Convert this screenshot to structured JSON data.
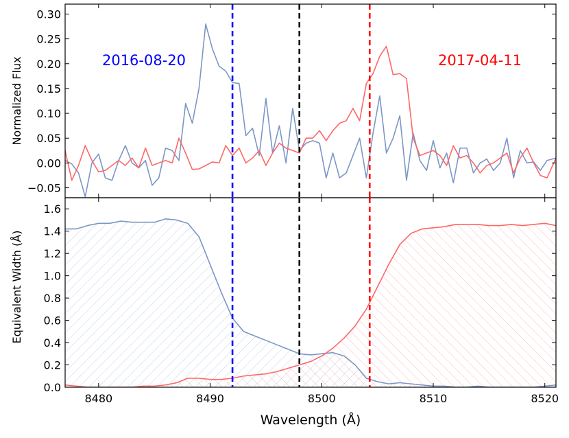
{
  "chart_data": [
    {
      "type": "line",
      "panel": "top",
      "title": "",
      "xlabel": "",
      "ylabel": "Normalized Flux",
      "xlim": [
        8477,
        8521
      ],
      "ylim": [
        -0.07,
        0.32
      ],
      "yticks": [
        -0.05,
        0.0,
        0.05,
        0.1,
        0.15,
        0.2,
        0.25,
        0.3
      ],
      "ytick_labels": [
        "−0.05",
        "0.00",
        "0.05",
        "0.10",
        "0.15",
        "0.20",
        "0.25",
        "0.30"
      ],
      "grid": false,
      "annotations": [
        {
          "text": "2016-08-20",
          "color": "#0000ff"
        },
        {
          "text": "2017-04-11",
          "color": "#ff0000"
        }
      ],
      "vlines": [
        {
          "x": 8492,
          "color": "#0000ff",
          "style": "dashed"
        },
        {
          "x": 8498,
          "color": "#000000",
          "style": "dashed"
        },
        {
          "x": 8504.3,
          "color": "#ff0000",
          "style": "dashed"
        }
      ],
      "series": [
        {
          "color": "#7b96c6",
          "x": [
            8477,
            8477.6,
            8478.2,
            8478.8,
            8479.4,
            8480,
            8480.6,
            8481.2,
            8481.8,
            8482.4,
            8483,
            8483.6,
            8484.2,
            8484.8,
            8485.4,
            8486,
            8486.6,
            8487.2,
            8487.8,
            8488.4,
            8489,
            8489.6,
            8490.2,
            8490.8,
            8491.4,
            8492,
            8492.6,
            8493.2,
            8493.8,
            8494.4,
            8495,
            8495.6,
            8496.2,
            8496.8,
            8497.4,
            8498,
            8498.6,
            8499.2,
            8499.8,
            8500.4,
            8501,
            8501.6,
            8502.2,
            8502.8,
            8503.4,
            8504,
            8504.6,
            8505.2,
            8505.8,
            8506.4,
            8507,
            8507.6,
            8508.2,
            8508.8,
            8509.4,
            8510,
            8510.6,
            8511.2,
            8511.8,
            8512.4,
            8513,
            8513.6,
            8514.2,
            8514.8,
            8515.4,
            8516,
            8516.6,
            8517.2,
            8517.8,
            8518.4,
            8519,
            8519.6,
            8520.2,
            8521
          ],
          "y": [
            0.005,
            -0.002,
            -0.02,
            -0.068,
            0.0,
            0.018,
            -0.03,
            -0.035,
            0.005,
            0.035,
            0.0,
            -0.01,
            0.005,
            -0.045,
            -0.03,
            0.03,
            0.025,
            0.005,
            0.12,
            0.08,
            0.15,
            0.28,
            0.23,
            0.195,
            0.185,
            0.162,
            0.16,
            0.055,
            0.07,
            0.015,
            0.13,
            0.02,
            0.075,
            0.0,
            0.11,
            0.025,
            0.04,
            0.045,
            0.04,
            -0.03,
            0.02,
            -0.03,
            -0.02,
            0.015,
            0.05,
            -0.03,
            0.06,
            0.135,
            0.02,
            0.05,
            0.095,
            -0.035,
            0.06,
            0.005,
            -0.015,
            0.045,
            -0.01,
            0.02,
            -0.04,
            0.03,
            0.03,
            -0.02,
            0.0,
            0.008,
            -0.015,
            0.0,
            0.05,
            -0.03,
            0.025,
            0.0,
            0.002,
            -0.015,
            0.005,
            0.01
          ]
        },
        {
          "color": "#ff6666",
          "x": [
            8477,
            8477.6,
            8478.2,
            8478.8,
            8479.4,
            8480,
            8480.6,
            8481.2,
            8481.8,
            8482.4,
            8483,
            8483.6,
            8484.2,
            8484.8,
            8485.4,
            8486,
            8486.6,
            8487.2,
            8487.8,
            8488.4,
            8489,
            8489.6,
            8490.2,
            8490.8,
            8491.4,
            8492,
            8492.6,
            8493.2,
            8493.8,
            8494.4,
            8495,
            8495.6,
            8496.2,
            8496.8,
            8497.4,
            8498,
            8498.6,
            8499.2,
            8499.8,
            8500.4,
            8501,
            8501.6,
            8502.2,
            8502.8,
            8503.4,
            8504,
            8504.6,
            8505.2,
            8505.8,
            8506.4,
            8507,
            8507.6,
            8508.2,
            8508.8,
            8509.4,
            8510,
            8510.6,
            8511.2,
            8511.8,
            8512.4,
            8513,
            8513.6,
            8514.2,
            8514.8,
            8515.4,
            8516,
            8516.6,
            8517.2,
            8517.8,
            8518.4,
            8519,
            8519.6,
            8520.2,
            8521
          ],
          "y": [
            0.025,
            -0.035,
            -0.005,
            0.035,
            0.005,
            -0.018,
            -0.015,
            -0.005,
            0.005,
            -0.005,
            0.01,
            -0.01,
            0.03,
            -0.005,
            0.0,
            0.005,
            0.0,
            0.05,
            0.02,
            -0.013,
            -0.012,
            -0.005,
            0.002,
            0.0,
            0.035,
            0.015,
            0.03,
            0.0,
            0.01,
            0.025,
            -0.005,
            0.02,
            0.04,
            0.03,
            0.025,
            0.02,
            0.05,
            0.05,
            0.065,
            0.045,
            0.065,
            0.08,
            0.085,
            0.11,
            0.085,
            0.16,
            0.18,
            0.215,
            0.235,
            0.178,
            0.18,
            0.17,
            0.05,
            0.015,
            0.02,
            0.025,
            0.015,
            -0.005,
            0.035,
            0.01,
            0.015,
            0.0,
            -0.02,
            -0.005,
            0.0,
            0.01,
            0.02,
            -0.02,
            0.01,
            0.03,
            0.0,
            -0.025,
            -0.03,
            0.01
          ]
        }
      ]
    },
    {
      "type": "area",
      "panel": "bottom",
      "title": "",
      "xlabel": "Wavelength (Å)",
      "ylabel": "Equivalent Width (Å)",
      "xlim": [
        8477,
        8521
      ],
      "ylim": [
        0.0,
        1.7
      ],
      "xticks": [
        8480,
        8490,
        8500,
        8510,
        8520
      ],
      "xtick_labels": [
        "8480",
        "8490",
        "8500",
        "8510",
        "8520"
      ],
      "yticks": [
        0.0,
        0.2,
        0.4,
        0.6,
        0.8,
        1.0,
        1.2,
        1.4,
        1.6
      ],
      "ytick_labels": [
        "0.0",
        "0.2",
        "0.4",
        "0.6",
        "0.8",
        "1.0",
        "1.2",
        "1.4",
        "1.6"
      ],
      "grid": false,
      "vlines": [
        {
          "x": 8492,
          "color": "#0000ff",
          "style": "dashed"
        },
        {
          "x": 8498,
          "color": "#000000",
          "style": "dashed"
        },
        {
          "x": 8504.3,
          "color": "#ff0000",
          "style": "dashed"
        }
      ],
      "series": [
        {
          "color": "#7b96c6",
          "fill": "hatched",
          "x": [
            8477,
            8478,
            8479,
            8480,
            8481,
            8482,
            8483,
            8484,
            8485,
            8486,
            8487,
            8488,
            8489,
            8490,
            8491,
            8492,
            8493,
            8494,
            8495,
            8496,
            8497,
            8498,
            8499,
            8500,
            8501,
            8502,
            8503,
            8504,
            8505,
            8506,
            8507,
            8508,
            8509,
            8510,
            8511,
            8512,
            8513,
            8514,
            8515,
            8516,
            8517,
            8518,
            8519,
            8520,
            8521
          ],
          "y": [
            1.42,
            1.42,
            1.45,
            1.47,
            1.47,
            1.49,
            1.48,
            1.48,
            1.48,
            1.51,
            1.5,
            1.47,
            1.35,
            1.1,
            0.85,
            0.62,
            0.5,
            0.46,
            0.42,
            0.38,
            0.34,
            0.3,
            0.29,
            0.3,
            0.31,
            0.28,
            0.2,
            0.08,
            0.05,
            0.03,
            0.04,
            0.03,
            0.02,
            0.01,
            0.01,
            0.0,
            0.0,
            0.01,
            0.0,
            0.0,
            0.0,
            0.0,
            0.0,
            0.01,
            0.02
          ]
        },
        {
          "color": "#ff6666",
          "fill": "hatched",
          "x": [
            8477,
            8478,
            8479,
            8480,
            8481,
            8482,
            8483,
            8484,
            8485,
            8486,
            8487,
            8488,
            8489,
            8490,
            8491,
            8492,
            8493,
            8494,
            8495,
            8496,
            8497,
            8498,
            8499,
            8500,
            8501,
            8502,
            8503,
            8504,
            8505,
            8506,
            8507,
            8508,
            8509,
            8510,
            8511,
            8512,
            8513,
            8514,
            8515,
            8516,
            8517,
            8518,
            8519,
            8520,
            8521
          ],
          "y": [
            0.02,
            0.01,
            0.0,
            0.0,
            0.0,
            0.0,
            0.0,
            0.01,
            0.01,
            0.02,
            0.04,
            0.08,
            0.08,
            0.07,
            0.07,
            0.08,
            0.1,
            0.11,
            0.12,
            0.14,
            0.17,
            0.2,
            0.23,
            0.28,
            0.35,
            0.44,
            0.55,
            0.7,
            0.9,
            1.1,
            1.28,
            1.38,
            1.42,
            1.43,
            1.44,
            1.46,
            1.46,
            1.46,
            1.45,
            1.45,
            1.46,
            1.45,
            1.46,
            1.47,
            1.45
          ]
        }
      ]
    }
  ]
}
